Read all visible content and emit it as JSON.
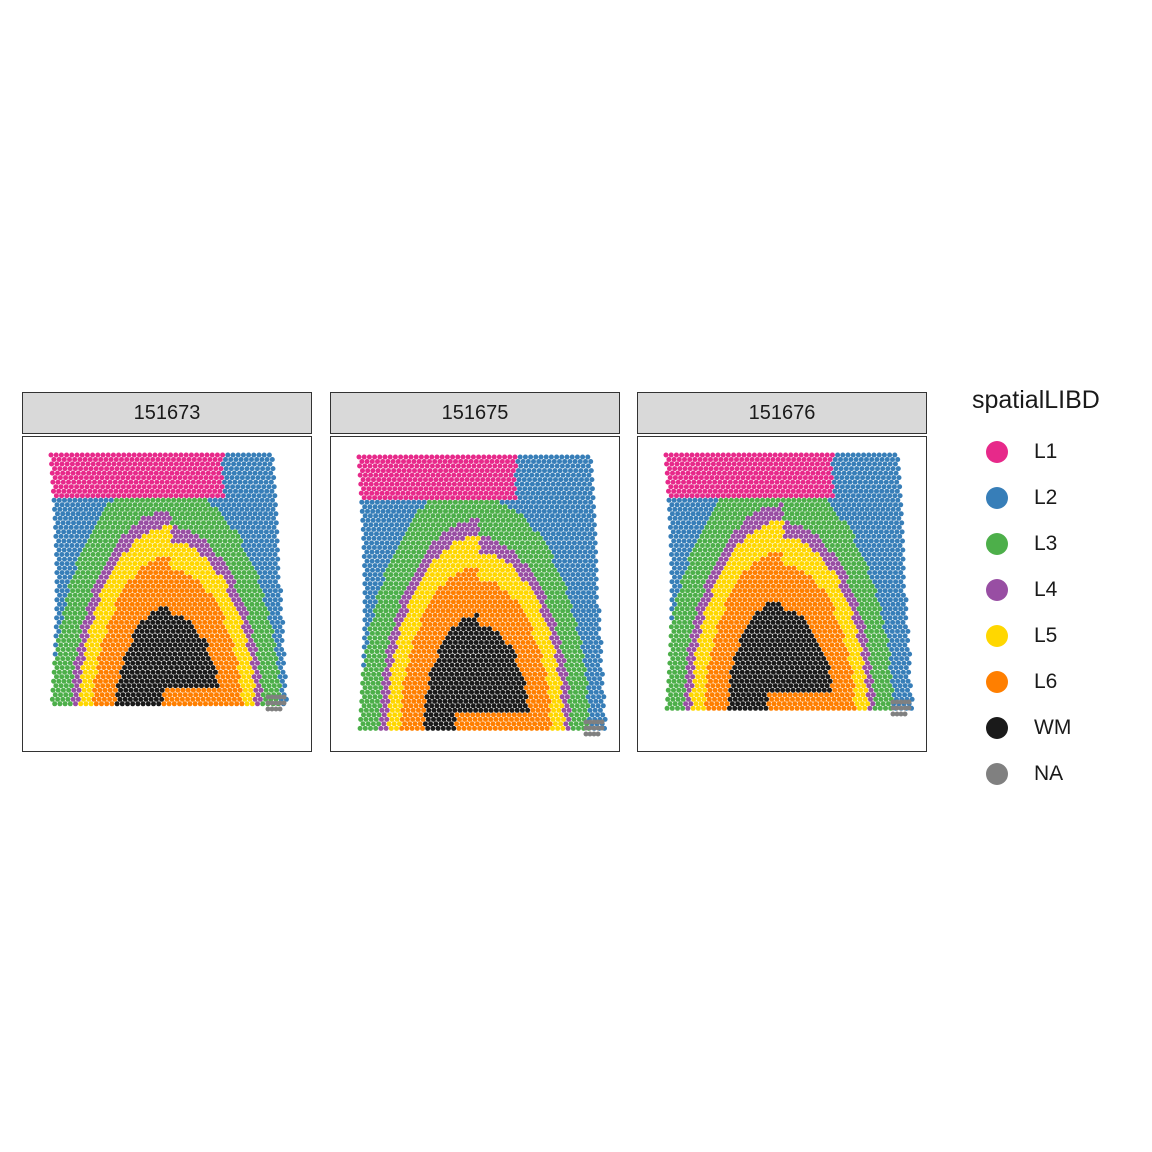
{
  "legend": {
    "title": "spatialLIBD",
    "items": [
      {
        "label": "L1",
        "color": "#e7298a"
      },
      {
        "label": "L2",
        "color": "#377eb8"
      },
      {
        "label": "L3",
        "color": "#4daf4a"
      },
      {
        "label": "L4",
        "color": "#984ea3"
      },
      {
        "label": "L5",
        "color": "#ffd700"
      },
      {
        "label": "L6",
        "color": "#ff7f00"
      },
      {
        "label": "WM",
        "color": "#1a1a1a"
      },
      {
        "label": "NA",
        "color": "#808080"
      }
    ]
  },
  "chart_data": {
    "type": "scatter",
    "title": "",
    "grid": false,
    "legend_placement": "right",
    "description_of_marks": "spatial spots colored by cortical layer",
    "facets": [
      {
        "label": "151673",
        "layers": [
          "L1",
          "L2",
          "L3",
          "L4",
          "L5",
          "L6",
          "WM",
          "NA"
        ]
      },
      {
        "label": "151675",
        "layers": [
          "L1",
          "L2",
          "L3",
          "L4",
          "L5",
          "L6",
          "WM",
          "NA"
        ]
      },
      {
        "label": "151676",
        "layers": [
          "L1",
          "L2",
          "L3",
          "L4",
          "L5",
          "L6",
          "WM",
          "NA"
        ]
      }
    ]
  }
}
